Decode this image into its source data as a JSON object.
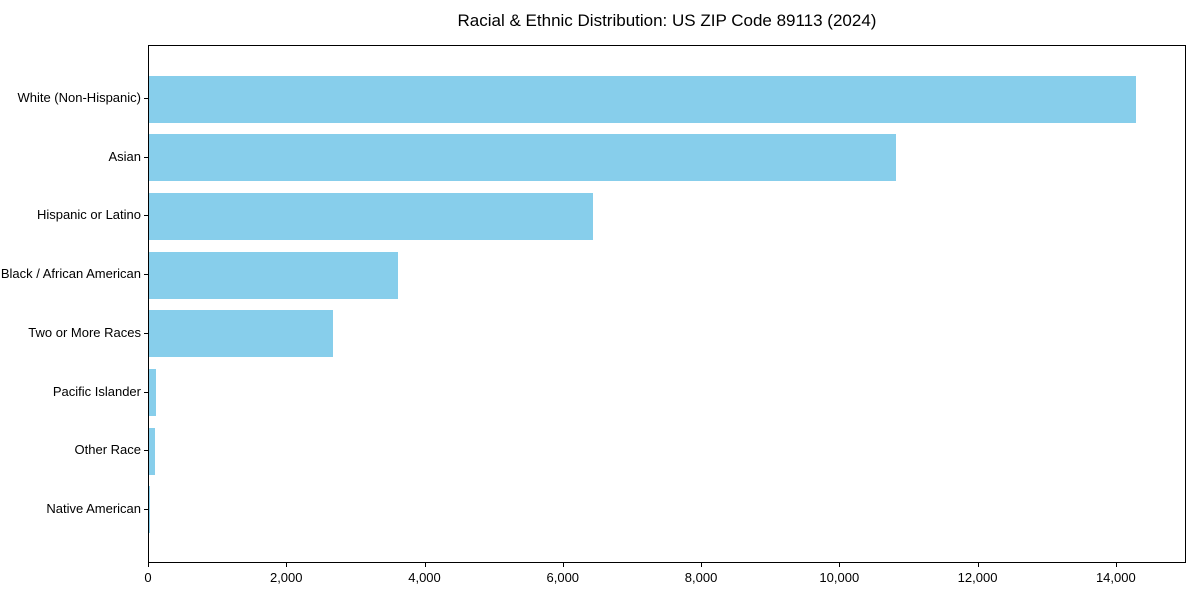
{
  "figure": {
    "background": "#ffffff"
  },
  "chart_data": {
    "type": "bar",
    "orientation": "horizontal",
    "title": "Racial & Ethnic Distribution: US ZIP Code 89113 (2024)",
    "categories": [
      "White (Non-Hispanic)",
      "Asian",
      "Hispanic or Latino",
      "Black / African American",
      "Two or More Races",
      "Pacific Islander",
      "Other Race",
      "Native American"
    ],
    "values": [
      14300,
      10830,
      6440,
      3610,
      2670,
      95,
      80,
      15
    ],
    "xlabel": "",
    "ylabel": "",
    "xlim": [
      0,
      15015
    ],
    "xticks": [
      0,
      2000,
      4000,
      6000,
      8000,
      10000,
      12000,
      14000
    ],
    "xtick_labels": [
      "0",
      "2,000",
      "4,000",
      "6,000",
      "8,000",
      "10,000",
      "12,000",
      "14,000"
    ],
    "bar_color": "#87CEEB",
    "axis_color": "#000000",
    "text_color": "#000000",
    "grid": false,
    "legend": "none"
  }
}
